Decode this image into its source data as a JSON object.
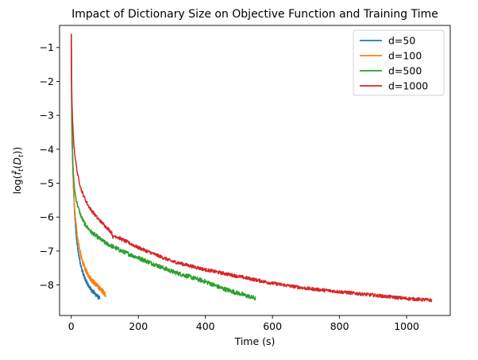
{
  "chart_data": {
    "type": "line",
    "title": "Impact of Dictionary Size on Objective Function and Training Time",
    "xlabel": "Time (s)",
    "ylabel": "log(f̂t(Dt))",
    "xlim": [
      -35,
      1130
    ],
    "ylim": [
      -8.9,
      -0.35
    ],
    "xticks": [
      0,
      200,
      400,
      600,
      800,
      1000
    ],
    "yticks": [
      -1,
      -2,
      -3,
      -4,
      -5,
      -6,
      -7,
      -8
    ],
    "xtick_labels": [
      "0",
      "200",
      "400",
      "600",
      "800",
      "1000"
    ],
    "ytick_labels": [
      "−1",
      "−2",
      "−3",
      "−4",
      "−5",
      "−6",
      "−7",
      "−8"
    ],
    "grid": false,
    "legend_position": "top-right",
    "series": [
      {
        "name": "d=50",
        "color": "#1f77b4",
        "noise": 0.06,
        "x": [
          0,
          1,
          2,
          4,
          6,
          8,
          10,
          15,
          20,
          30,
          40,
          50,
          60,
          70,
          80,
          85
        ],
        "y": [
          -0.6,
          -2.5,
          -3.3,
          -4.3,
          -5.0,
          -5.5,
          -5.9,
          -6.6,
          -7.0,
          -7.5,
          -7.8,
          -8.0,
          -8.15,
          -8.25,
          -8.35,
          -8.4
        ]
      },
      {
        "name": "d=100",
        "color": "#ff7f0e",
        "noise": 0.07,
        "x": [
          0,
          1,
          2,
          4,
          6,
          8,
          10,
          15,
          20,
          30,
          40,
          50,
          60,
          70,
          80,
          90,
          100,
          103
        ],
        "y": [
          -0.6,
          -2.6,
          -3.4,
          -4.4,
          -5.0,
          -5.4,
          -5.8,
          -6.3,
          -6.7,
          -7.2,
          -7.5,
          -7.7,
          -7.85,
          -7.95,
          -8.05,
          -8.15,
          -8.25,
          -8.3
        ]
      },
      {
        "name": "d=500",
        "color": "#2ca02c",
        "noise": 0.065,
        "x": [
          0,
          1,
          2,
          4,
          6,
          8,
          10,
          15,
          20,
          30,
          40,
          60,
          80,
          100,
          150,
          200,
          250,
          300,
          350,
          400,
          450,
          500,
          550
        ],
        "y": [
          -0.6,
          -2.8,
          -3.5,
          -4.3,
          -4.7,
          -5.0,
          -5.2,
          -5.5,
          -5.7,
          -6.0,
          -6.2,
          -6.45,
          -6.6,
          -6.75,
          -7.0,
          -7.2,
          -7.4,
          -7.6,
          -7.75,
          -7.9,
          -8.1,
          -8.25,
          -8.4
        ]
      },
      {
        "name": "d=1000",
        "color": "#d62728",
        "noise": 0.05,
        "x": [
          0,
          1,
          2,
          4,
          6,
          8,
          10,
          15,
          20,
          30,
          40,
          50,
          60,
          80,
          100,
          120,
          125,
          130,
          150,
          200,
          250,
          300,
          400,
          500,
          600,
          700,
          800,
          900,
          1000,
          1075
        ],
        "y": [
          -0.6,
          -2.0,
          -2.6,
          -3.2,
          -3.6,
          -3.9,
          -4.1,
          -4.5,
          -4.8,
          -5.2,
          -5.45,
          -5.65,
          -5.8,
          -6.05,
          -6.25,
          -6.45,
          -6.6,
          -6.55,
          -6.65,
          -6.9,
          -7.1,
          -7.3,
          -7.55,
          -7.75,
          -7.95,
          -8.1,
          -8.2,
          -8.3,
          -8.4,
          -8.45
        ]
      }
    ]
  }
}
